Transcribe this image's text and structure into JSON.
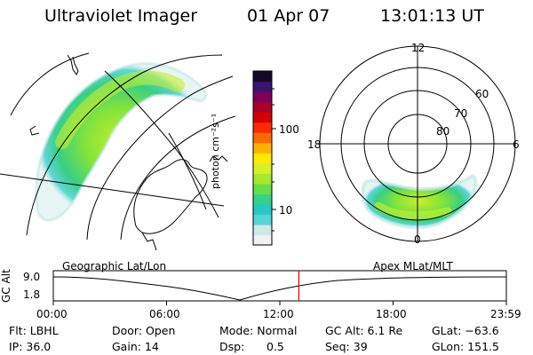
{
  "header": {
    "instrument": "Ultraviolet Imager",
    "date": "01 Apr 07",
    "time": "13:01:13 UT"
  },
  "colorbar": {
    "unit_label": "photon cm⁻²s⁻¹",
    "tick_100": "100",
    "tick_10": "10",
    "colors": [
      "#f2f2f2",
      "#cfe9e9",
      "#55d5d5",
      "#28c8c8",
      "#35d28a",
      "#66e04a",
      "#a6ea2e",
      "#d8f028",
      "#ffea00",
      "#ffb000",
      "#ff6a00",
      "#ff2a00",
      "#d40000",
      "#a80026",
      "#7e0059",
      "#3a1470",
      "#140828"
    ]
  },
  "polar": {
    "mlt_labels": {
      "top": "12",
      "left": "18",
      "right": "6",
      "bottom": "0"
    },
    "lat_labels": [
      "60",
      "70",
      "80"
    ]
  },
  "timeline": {
    "left_label": "Geographic Lat/Lon",
    "right_label": "Apex MLat/MLT",
    "axis_title": "GC Alt",
    "y_top": "9.0",
    "y_bottom": "1.8",
    "times": [
      "00:00",
      "06:00",
      "12:00",
      "18:00",
      "23:59"
    ],
    "current_time_fraction": 0.542,
    "cursor_color": "#ff0000"
  },
  "status": {
    "flt": "Flt: LBHL",
    "ip": "IP: 36.0",
    "door": "Door: Open",
    "gain": "Gain: 14",
    "mode": "Mode: Normal",
    "dsp_label": "Dsp:",
    "dsp_value": "0.5",
    "gc_alt": "GC Alt: 6.1 Re",
    "seq": "Seq: 39",
    "glat": "GLat: −63.6",
    "glon": "GLon: 151.5"
  }
}
